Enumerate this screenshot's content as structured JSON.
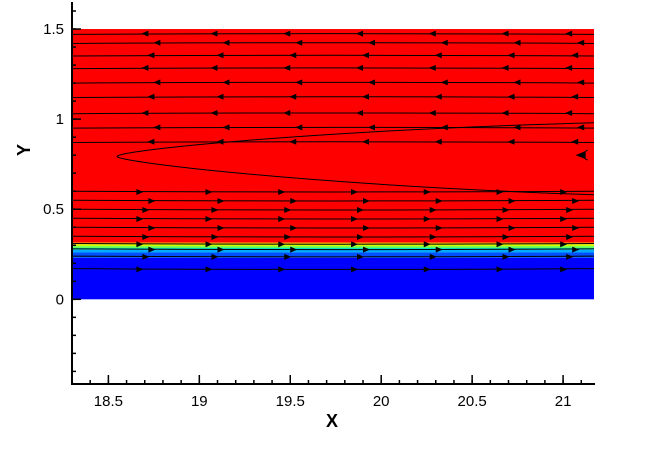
{
  "chart_data": {
    "type": "contour",
    "xlabel": "X",
    "ylabel": "Y",
    "xlim": [
      18.3,
      21.17
    ],
    "ylim": [
      -0.47,
      1.65
    ],
    "x_ticks": [
      {
        "value": 18.5,
        "label": "18.5"
      },
      {
        "value": 19,
        "label": "19"
      },
      {
        "value": 19.5,
        "label": "19.5"
      },
      {
        "value": 20,
        "label": "20"
      },
      {
        "value": 20.5,
        "label": "20.5"
      },
      {
        "value": 21,
        "label": "21"
      }
    ],
    "x_minor_step": 0.1,
    "y_ticks": [
      {
        "value": 0,
        "label": "0"
      },
      {
        "value": 0.5,
        "label": "0.5"
      },
      {
        "value": 1,
        "label": "1"
      },
      {
        "value": 1.5,
        "label": "1.5"
      }
    ],
    "y_minor_step": 0.1,
    "domain": {
      "x": [
        18.3,
        21.17
      ],
      "y": [
        0,
        1.5
      ]
    },
    "contour_layers": [
      {
        "y_from": 0.0,
        "y_to": 0.23,
        "color": "#0000ff"
      },
      {
        "y_from": 0.23,
        "y_to": 0.26,
        "color": "#0050ff"
      },
      {
        "y_from": 0.26,
        "y_to": 0.275,
        "color": "#00aaff"
      },
      {
        "y_from": 0.275,
        "y_to": 0.285,
        "color": "#00e6c8"
      },
      {
        "y_from": 0.285,
        "y_to": 0.295,
        "color": "#55ff55"
      },
      {
        "y_from": 0.295,
        "y_to": 0.305,
        "color": "#ccff00"
      },
      {
        "y_from": 0.305,
        "y_to": 0.315,
        "color": "#ffcc00"
      },
      {
        "y_from": 0.315,
        "y_to": 1.5,
        "color": "#ff0000"
      }
    ],
    "streamlines": [
      {
        "y": 0.17,
        "direction": "right"
      },
      {
        "y": 0.24,
        "direction": "right"
      },
      {
        "y": 0.28,
        "direction": "right"
      },
      {
        "y": 0.31,
        "direction": "right"
      },
      {
        "y": 0.35,
        "direction": "right"
      },
      {
        "y": 0.4,
        "direction": "right"
      },
      {
        "y": 0.45,
        "direction": "right"
      },
      {
        "y": 0.5,
        "direction": "right"
      },
      {
        "y": 0.55,
        "direction": "right"
      },
      {
        "y": 0.6,
        "direction": "right"
      },
      {
        "y": 0.87,
        "direction": "left"
      },
      {
        "y": 0.95,
        "direction": "left"
      },
      {
        "y": 1.03,
        "direction": "left"
      },
      {
        "y": 1.12,
        "direction": "left"
      },
      {
        "y": 1.2,
        "direction": "left"
      },
      {
        "y": 1.28,
        "direction": "left"
      },
      {
        "y": 1.35,
        "direction": "left"
      },
      {
        "y": 1.42,
        "direction": "left"
      },
      {
        "y": 1.47,
        "direction": "left"
      }
    ],
    "recirculation": {
      "tip_x": 18.55,
      "y": 0.79,
      "upper_y": 0.98,
      "lower_y": 0.58
    },
    "colors": {
      "axis": "#000000",
      "background": "#ffffff",
      "streamline": "#000000"
    }
  }
}
